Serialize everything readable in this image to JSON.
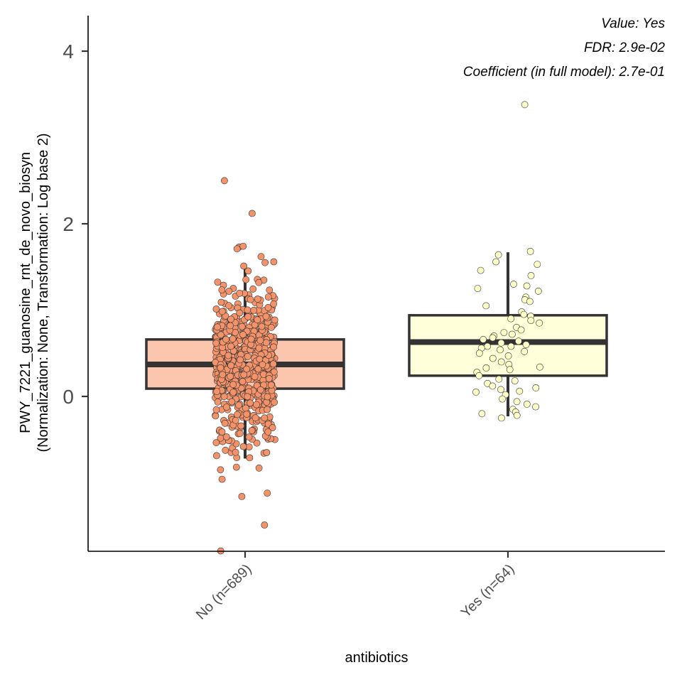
{
  "chart_data": {
    "type": "box",
    "xlabel": "antibiotics",
    "ylabel": "PWY_7221_guanosine_rnt_de_novo_biosyn",
    "ylabel_sub": "(Normalization: None, Transformation: Log base 2)",
    "y_ticks": [
      "0",
      "2",
      "4"
    ],
    "y_tick_values": [
      0,
      2,
      4
    ],
    "ylim": [
      -1.8,
      4.4
    ],
    "categories": [
      "No (n=689)",
      "Yes (n=64)"
    ],
    "annotations": [
      "Value: Yes",
      "FDR: 2.9e-02",
      "Coefficient (in full model): 2.7e-01"
    ],
    "grid": false,
    "series": [
      {
        "category": "No (n=689)",
        "n": 689,
        "fill": "#fcc5ad",
        "point_color": "#f4926a",
        "box": {
          "lower_whisker": -0.72,
          "q1": 0.09,
          "median": 0.37,
          "q3": 0.66,
          "upper_whisker": 1.48
        },
        "outliers": [
          2.5,
          2.12,
          1.73,
          1.74,
          1.71,
          1.62,
          1.56,
          1.55,
          1.51,
          -0.82,
          -0.83,
          -0.85,
          -0.96,
          -1.12,
          -1.16,
          -1.49,
          -1.79
        ]
      },
      {
        "category": "Yes (n=64)",
        "n": 64,
        "fill": "#ffffd9",
        "point_color": "#ffffc8",
        "box": {
          "lower_whisker": -0.23,
          "q1": 0.24,
          "median": 0.63,
          "q3": 0.94,
          "upper_whisker": 1.67
        },
        "outliers": [
          3.38
        ],
        "points": [
          1.68,
          1.64,
          1.56,
          1.53,
          1.46,
          1.4,
          1.3,
          1.28,
          1.25,
          1.22,
          1.15,
          1.12,
          1.1,
          1.05,
          0.98,
          0.95,
          0.93,
          0.9,
          0.85,
          0.8,
          0.77,
          0.74,
          0.72,
          0.7,
          0.68,
          0.66,
          0.64,
          0.62,
          0.6,
          0.58,
          0.56,
          0.54,
          0.52,
          0.5,
          0.47,
          0.44,
          0.4,
          0.37,
          0.34,
          0.31,
          0.28,
          0.24,
          0.2,
          0.18,
          0.15,
          0.12,
          0.1,
          0.08,
          0.06,
          0.05,
          0.02,
          -0.03,
          -0.06,
          -0.09,
          -0.12,
          -0.15,
          -0.18,
          -0.2,
          -0.22,
          -0.25,
          0.88,
          0.33,
          0.58
        ]
      }
    ]
  }
}
